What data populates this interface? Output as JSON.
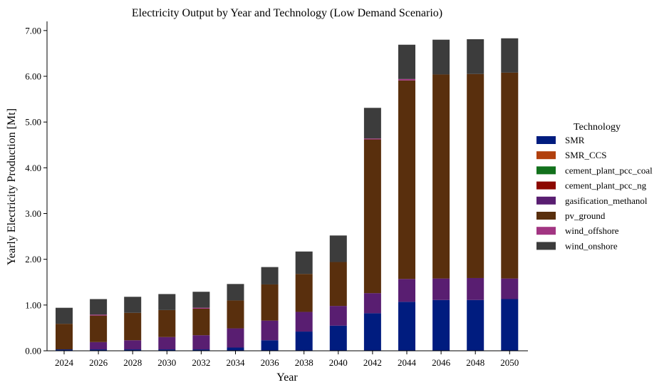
{
  "chart_data": {
    "type": "bar",
    "stacked": true,
    "title": "Electricity Output by Year and Technology (Low Demand Scenario)",
    "xlabel": "Year",
    "ylabel": "Yearly Electricity Production [Mt]",
    "ylim": [
      0,
      7.2
    ],
    "yticks": [
      "0.00",
      "1.00",
      "2.00",
      "3.00",
      "4.00",
      "5.00",
      "6.00",
      "7.00"
    ],
    "grid": false,
    "legend": {
      "title": "Technology",
      "placement": "right-center"
    },
    "categories": [
      "2024",
      "2026",
      "2028",
      "2030",
      "2032",
      "2034",
      "2036",
      "2038",
      "2040",
      "2042",
      "2044",
      "2046",
      "2048",
      "2050"
    ],
    "series": [
      {
        "name": "SMR",
        "color": "#001c7f",
        "values": [
          0.03,
          0.03,
          0.03,
          0.03,
          0.03,
          0.07,
          0.23,
          0.42,
          0.55,
          0.82,
          1.07,
          1.11,
          1.11,
          1.13
        ]
      },
      {
        "name": "SMR_CCS",
        "color": "#b1400d",
        "values": [
          0,
          0,
          0,
          0,
          0,
          0,
          0,
          0,
          0,
          0,
          0,
          0,
          0,
          0
        ]
      },
      {
        "name": "cement_plant_pcc_coal",
        "color": "#12711c",
        "values": [
          0,
          0,
          0,
          0,
          0,
          0,
          0,
          0,
          0,
          0,
          0,
          0,
          0,
          0
        ]
      },
      {
        "name": "cement_plant_pcc_ng",
        "color": "#8c0800",
        "values": [
          0,
          0,
          0,
          0,
          0,
          0,
          0,
          0,
          0,
          0,
          0,
          0,
          0,
          0
        ]
      },
      {
        "name": "gasification_methanol",
        "color": "#591e71",
        "values": [
          0.0,
          0.16,
          0.2,
          0.27,
          0.31,
          0.42,
          0.43,
          0.43,
          0.43,
          0.44,
          0.5,
          0.47,
          0.48,
          0.45
        ]
      },
      {
        "name": "pv_ground",
        "color": "#592f0d",
        "values": [
          0.56,
          0.58,
          0.6,
          0.59,
          0.58,
          0.61,
          0.79,
          0.83,
          0.96,
          3.36,
          4.34,
          4.46,
          4.46,
          4.5
        ]
      },
      {
        "name": "wind_offshore",
        "color": "#a23582",
        "values": [
          0,
          0.02,
          0,
          0,
          0.02,
          0,
          0,
          0,
          0,
          0.02,
          0.03,
          0,
          0,
          0
        ]
      },
      {
        "name": "wind_onshore",
        "color": "#3c3c3c",
        "values": [
          0.35,
          0.34,
          0.35,
          0.35,
          0.35,
          0.36,
          0.38,
          0.49,
          0.58,
          0.67,
          0.75,
          0.76,
          0.76,
          0.75
        ]
      }
    ]
  }
}
